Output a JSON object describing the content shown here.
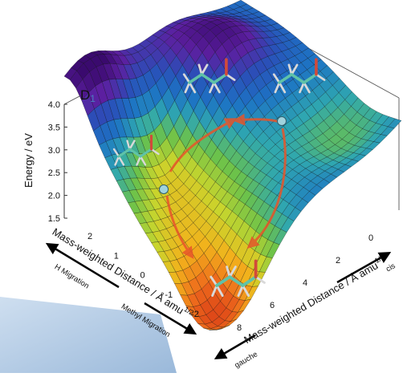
{
  "chart_data": {
    "type": "surface",
    "state_label": "D",
    "state_subscript": "1",
    "zlabel": "Energy / eV",
    "zlim": [
      1.5,
      4.0
    ],
    "zticks": [
      "4.0",
      "3.5",
      "3.0",
      "2.5",
      "2.0",
      "1.5"
    ],
    "xlabel": "Mass-weighted Distance / Å amu",
    "xlabel_sup": "1/2",
    "xticks": [
      "2",
      "1",
      "0",
      "-1",
      "-2"
    ],
    "xdir_left": "H Migration",
    "xdir_right": "Methyl Migration",
    "ylabel": "Mass-weighted Distance / Å amu",
    "ylabel_sup": "1/2",
    "yticks": [
      "0",
      "2",
      "4",
      "6",
      "8"
    ],
    "ydir_top": "cis",
    "ydir_bottom": "gauche",
    "grid": true,
    "colors": {
      "surface": [
        "#3a0a6e",
        "#5c1fa0",
        "#2a4fb8",
        "#1d74c4",
        "#2fa7b0",
        "#6cc24a",
        "#c8d52d",
        "#f2b21c",
        "#ee6a1c",
        "#d93c16"
      ],
      "arrow": "#e8552a",
      "minimum_marker": "#9fd3dd",
      "background_accent": "#a9c4e0"
    }
  }
}
